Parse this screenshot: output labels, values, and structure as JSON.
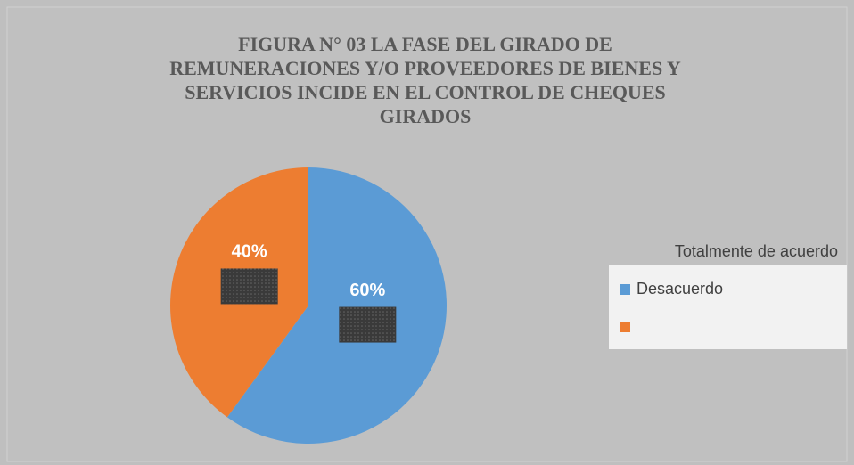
{
  "chart_data": {
    "type": "pie",
    "title": "FIGURA N° 03 LA FASE DEL GIRADO DE REMUNERACIONES Y/O PROVEEDORES DE BIENES Y SERVICIOS INCIDE EN EL CONTROL DE CHEQUES GIRADOS",
    "legend_title": "Totalmente de acuerdo",
    "categories": [
      "Desacuerdo",
      null
    ],
    "values": [
      60,
      40
    ],
    "value_labels": [
      "60%",
      "40%"
    ],
    "colors": [
      "#5b9bd5",
      "#ed7d31"
    ],
    "legend": "right"
  }
}
